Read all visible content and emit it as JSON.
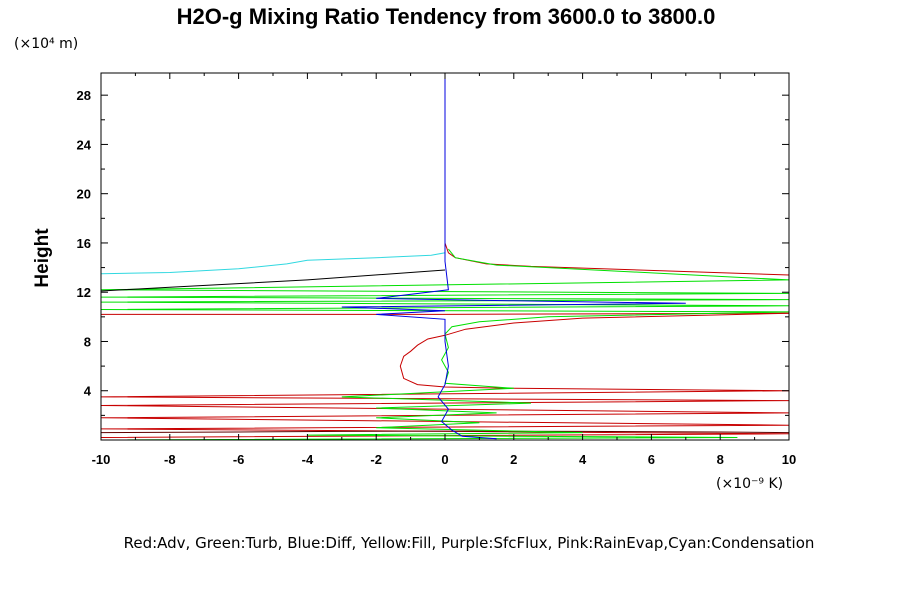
{
  "chart_data": {
    "type": "line",
    "title": "H2O-g Mixing Ratio Tendency from 3600.0 to 3800.0",
    "ylabel": "Height",
    "y_unit_label": "(×10⁴ m)",
    "x_unit_label": "(×10⁻⁹ K)",
    "xlim": [
      -10,
      10
    ],
    "ylim": [
      0,
      29.8
    ],
    "x_ticks": [
      "-10",
      "-8",
      "-6",
      "-4",
      "-2",
      "0",
      "2",
      "4",
      "6",
      "8",
      "10"
    ],
    "y_ticks": [
      "4",
      "8",
      "12",
      "16",
      "20",
      "24",
      "28"
    ],
    "legend_text": "Red:Adv, Green:Turb, Blue:Diff, Yellow:Fill, Purple:SfcFlux, Pink:RainEvap,Cyan:Condensation",
    "grid": false,
    "colors": {
      "red": "#c80000",
      "dark_red": "#600000",
      "green": "#00e000",
      "blue": "#0000e0",
      "cyan": "#30d8e0",
      "black": "#000000"
    },
    "series": [
      {
        "color": "cyan",
        "points": [
          [
            0,
            29.8
          ],
          [
            0,
            16
          ],
          [
            0,
            15.2
          ],
          [
            -0.4,
            15.0
          ],
          [
            -2,
            14.8
          ],
          [
            -4,
            14.6
          ],
          [
            -4.6,
            14.3
          ],
          [
            -6,
            13.9
          ],
          [
            -8,
            13.6
          ],
          [
            -10,
            13.5
          ]
        ]
      },
      {
        "color": "red",
        "points": [
          [
            0,
            16
          ],
          [
            0.1,
            15.2
          ],
          [
            0.3,
            14.8
          ],
          [
            1.2,
            14.3
          ],
          [
            2.5,
            14.1
          ],
          [
            10,
            13.4
          ],
          [
            10,
            10.3
          ],
          [
            0,
            10.2
          ],
          [
            -10,
            10.2
          ]
        ]
      },
      {
        "color": "red",
        "points": [
          [
            10,
            10.3
          ],
          [
            4,
            9.9
          ],
          [
            2,
            9.5
          ],
          [
            0.6,
            9.0
          ],
          [
            0,
            8.5
          ],
          [
            -0.5,
            8.2
          ],
          [
            -0.8,
            7.7
          ],
          [
            -1.0,
            7.2
          ],
          [
            -1.2,
            6.8
          ],
          [
            -1.3,
            6.0
          ],
          [
            -1.2,
            5.0
          ],
          [
            -0.8,
            4.5
          ],
          [
            0,
            4.3
          ],
          [
            2,
            4.2
          ],
          [
            10,
            4.0
          ],
          [
            -10,
            3.5
          ],
          [
            10,
            3.2
          ],
          [
            -10,
            2.8
          ],
          [
            10,
            2.2
          ],
          [
            -10,
            1.8
          ],
          [
            10,
            1.2
          ],
          [
            -10,
            0.9
          ],
          [
            10,
            0.5
          ],
          [
            -10,
            0.2
          ]
        ]
      },
      {
        "color": "dark_red",
        "points": [
          [
            -10,
            0.6
          ],
          [
            -6,
            0.65
          ],
          [
            -3,
            0.7
          ],
          [
            0,
            0.72
          ],
          [
            4,
            0.7
          ],
          [
            8,
            0.65
          ],
          [
            10,
            0.6
          ]
        ]
      },
      {
        "color": "green",
        "points": [
          [
            0.1,
            15.5
          ],
          [
            0.3,
            14.8
          ],
          [
            1.5,
            14.2
          ],
          [
            3,
            14.0
          ],
          [
            10,
            13.0
          ],
          [
            -10,
            12.2
          ],
          [
            10,
            11.9
          ],
          [
            -10,
            11.6
          ],
          [
            10,
            11.4
          ],
          [
            -10,
            11.2
          ],
          [
            10,
            10.9
          ],
          [
            -10,
            10.6
          ],
          [
            10,
            10.4
          ],
          [
            3,
            10.0
          ],
          [
            1,
            9.6
          ],
          [
            0.2,
            9.2
          ],
          [
            0,
            8.6
          ],
          [
            0.1,
            7.5
          ],
          [
            -0.1,
            6.5
          ],
          [
            0.1,
            5.5
          ],
          [
            0,
            4.6
          ],
          [
            2,
            4.2
          ],
          [
            -3,
            3.5
          ],
          [
            2.5,
            3.0
          ],
          [
            -2,
            2.6
          ],
          [
            1.5,
            2.2
          ],
          [
            -2,
            1.8
          ],
          [
            1,
            1.4
          ],
          [
            -2,
            1.0
          ],
          [
            4,
            0.6
          ],
          [
            -4,
            0.4
          ],
          [
            8.5,
            0.2
          ],
          [
            -10,
            0.0
          ]
        ]
      },
      {
        "color": "blue",
        "points": [
          [
            0,
            29.8
          ],
          [
            0,
            14.5
          ],
          [
            0.1,
            12.2
          ],
          [
            -2,
            11.5
          ],
          [
            2,
            11.3
          ],
          [
            7,
            11.1
          ],
          [
            -3,
            10.8
          ],
          [
            0,
            10.5
          ],
          [
            -2,
            10.2
          ],
          [
            0,
            9.8
          ],
          [
            0,
            8.0
          ],
          [
            0.1,
            6.0
          ],
          [
            0,
            4.5
          ],
          [
            -0.2,
            3.5
          ],
          [
            0.1,
            2.5
          ],
          [
            -0.1,
            1.5
          ],
          [
            0.2,
            0.8
          ],
          [
            0.5,
            0.3
          ],
          [
            1.5,
            0.1
          ]
        ]
      },
      {
        "color": "black",
        "points": [
          [
            0,
            13.8
          ],
          [
            -4,
            13.0
          ],
          [
            -8,
            12.4
          ],
          [
            -10,
            12.1
          ]
        ]
      }
    ]
  }
}
